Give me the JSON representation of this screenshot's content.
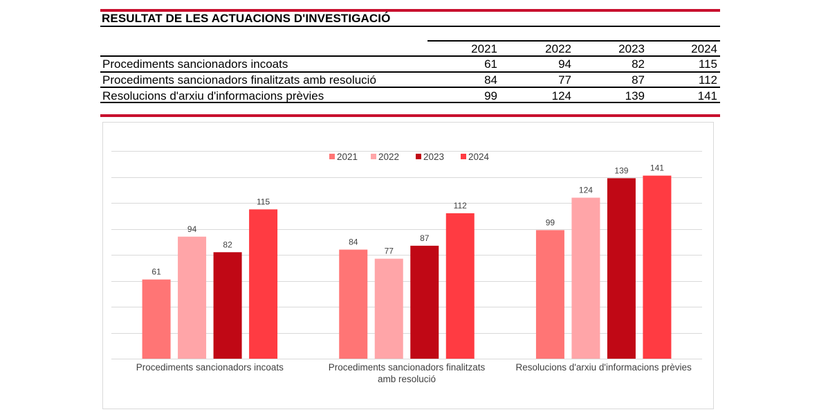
{
  "table": {
    "title": "RESULTAT DE LES ACTUACIONS D'INVESTIGACIÓ",
    "years": [
      "2021",
      "2022",
      "2023",
      "2024"
    ],
    "rows": [
      {
        "label": "Procediments sancionadors incoats",
        "values": [
          "61",
          "94",
          "82",
          "115"
        ]
      },
      {
        "label": "Procediments sancionadors finalitzats amb resolució",
        "values": [
          "84",
          "77",
          "87",
          "112"
        ]
      },
      {
        "label": "Resolucions d'arxiu d'informacions prèvies",
        "values": [
          "99",
          "124",
          "139",
          "141"
        ]
      }
    ]
  },
  "chart_data": {
    "type": "bar",
    "categories": [
      [
        "Procediments sancionadors incoats"
      ],
      [
        "Procediments sancionadors finalitzats",
        "amb resolució"
      ],
      [
        "Resolucions d'arxiu d'informacions prèvies"
      ]
    ],
    "series": [
      {
        "name": "2021",
        "color": "#ff7575",
        "values": [
          61,
          84,
          99
        ]
      },
      {
        "name": "2022",
        "color": "#ffa5a8",
        "values": [
          94,
          77,
          124
        ]
      },
      {
        "name": "2023",
        "color": "#c00815",
        "values": [
          82,
          87,
          139
        ]
      },
      {
        "name": "2024",
        "color": "#ff3b42",
        "values": [
          115,
          112,
          141
        ]
      }
    ],
    "ylim": [
      0,
      160
    ],
    "ygrid_step": 20,
    "grid": true,
    "legend": "top-center",
    "title": "",
    "xlabel": "",
    "ylabel": ""
  }
}
